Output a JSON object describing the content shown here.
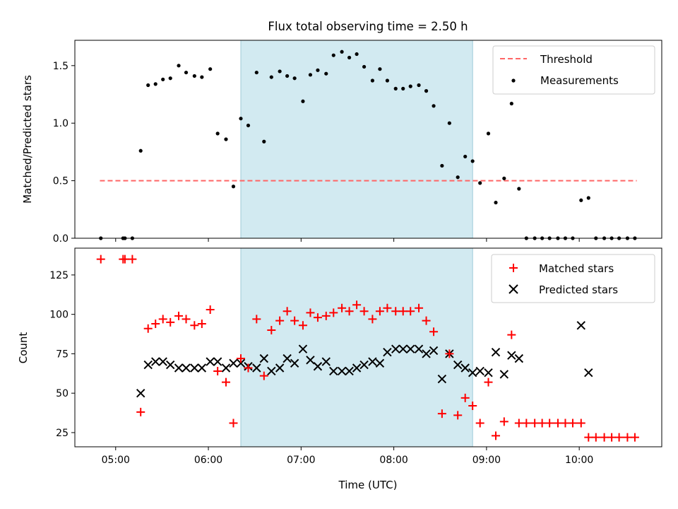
{
  "figure": {
    "title": "Flux total observing time = 2.50 h",
    "xlabel": "Time (UTC)",
    "x_ticks": [
      "05:00",
      "06:00",
      "07:00",
      "08:00",
      "09:00",
      "10:00"
    ],
    "x_tick_hours": [
      5,
      6,
      7,
      8,
      9,
      10
    ],
    "xlim_hours": [
      4.56,
      10.89
    ],
    "highlight_span_hours": [
      6.35,
      8.85
    ],
    "colors": {
      "highlight": "#add8e6",
      "threshold": "#ff6666",
      "matched": "#ff0000",
      "predicted": "#000000",
      "measurements": "#000000"
    }
  },
  "chart_data": [
    {
      "type": "scatter",
      "panel": "top",
      "xlabel": "",
      "ylabel": "Matched/Predicted stars",
      "ylim": [
        0,
        1.72
      ],
      "y_ticks": [
        0.0,
        0.5,
        1.0,
        1.5
      ],
      "y_tick_labels": [
        "0.0",
        "0.5",
        "1.0",
        "1.5"
      ],
      "legend": {
        "placement": "top-right",
        "entries": [
          "Threshold",
          "Measurements"
        ]
      },
      "threshold": {
        "name": "Threshold",
        "value": 0.5,
        "x_range": [
          4.83,
          10.62
        ]
      },
      "series": [
        {
          "name": "Measurements",
          "x": [
            4.84,
            5.08,
            5.1,
            5.18,
            5.27,
            5.35,
            5.43,
            5.51,
            5.59,
            5.68,
            5.76,
            5.85,
            5.93,
            6.02,
            6.1,
            6.19,
            6.27,
            6.35,
            6.43,
            6.52,
            6.6,
            6.68,
            6.77,
            6.85,
            6.93,
            7.02,
            7.1,
            7.18,
            7.27,
            7.35,
            7.44,
            7.52,
            7.6,
            7.68,
            7.77,
            7.85,
            7.93,
            8.02,
            8.1,
            8.18,
            8.27,
            8.35,
            8.43,
            8.52,
            8.6,
            8.69,
            8.77,
            8.85,
            8.93,
            9.02,
            9.1,
            9.19,
            9.27,
            9.35,
            9.43,
            9.52,
            9.6,
            9.68,
            9.77,
            9.85,
            9.93,
            10.02,
            10.1,
            10.18,
            10.27,
            10.35,
            10.43,
            10.52,
            10.6
          ],
          "y": [
            0.0,
            0.0,
            0.0,
            0.0,
            0.76,
            1.33,
            1.34,
            1.38,
            1.39,
            1.5,
            1.44,
            1.41,
            1.4,
            1.47,
            0.91,
            0.86,
            0.45,
            1.04,
            0.98,
            1.44,
            0.84,
            1.4,
            1.45,
            1.41,
            1.39,
            1.19,
            1.42,
            1.46,
            1.43,
            1.59,
            1.62,
            1.57,
            1.6,
            1.49,
            1.37,
            1.47,
            1.37,
            1.3,
            1.3,
            1.32,
            1.33,
            1.28,
            1.15,
            0.63,
            1.0,
            0.53,
            0.71,
            0.67,
            0.48,
            0.91,
            0.31,
            0.52,
            1.17,
            0.43,
            0.0,
            0.0,
            0.0,
            0.0,
            0.0,
            0.0,
            0.0,
            0.33,
            0.35,
            0.0,
            0.0,
            0.0,
            0.0,
            0.0,
            0.0
          ]
        }
      ]
    },
    {
      "type": "scatter",
      "panel": "bottom",
      "xlabel": "Time (UTC)",
      "ylabel": "Count",
      "ylim": [
        16,
        142
      ],
      "y_ticks": [
        25,
        50,
        75,
        100,
        125
      ],
      "y_tick_labels": [
        "25",
        "50",
        "75",
        "100",
        "125"
      ],
      "legend": {
        "placement": "top-right",
        "entries": [
          "Matched stars",
          "Predicted stars"
        ]
      },
      "series": [
        {
          "name": "Matched stars",
          "marker": "+",
          "x": [
            4.84,
            5.08,
            5.1,
            5.18,
            5.27,
            5.35,
            5.43,
            5.51,
            5.59,
            5.68,
            5.76,
            5.85,
            5.93,
            6.02,
            6.1,
            6.19,
            6.27,
            6.35,
            6.43,
            6.52,
            6.6,
            6.68,
            6.77,
            6.85,
            6.93,
            7.02,
            7.1,
            7.18,
            7.27,
            7.35,
            7.44,
            7.52,
            7.6,
            7.68,
            7.77,
            7.85,
            7.93,
            8.02,
            8.1,
            8.18,
            8.27,
            8.35,
            8.43,
            8.52,
            8.6,
            8.69,
            8.77,
            8.85,
            8.93,
            9.02,
            9.1,
            9.19,
            9.27,
            9.35,
            9.43,
            9.52,
            9.6,
            9.68,
            9.77,
            9.85,
            9.93,
            10.02,
            10.1,
            10.18,
            10.27,
            10.35,
            10.43,
            10.52,
            10.6
          ],
          "y": [
            135,
            135,
            135,
            135,
            38,
            91,
            94,
            97,
            95,
            99,
            97,
            93,
            94,
            103,
            64,
            57,
            31,
            72,
            66,
            97,
            61,
            90,
            96,
            102,
            96,
            93,
            101,
            98,
            99,
            101,
            104,
            102,
            106,
            102,
            97,
            102,
            104,
            102,
            102,
            102,
            104,
            96,
            89,
            37,
            75,
            36,
            47,
            42,
            31,
            57,
            23,
            32,
            87,
            31,
            31,
            31,
            31,
            31,
            31,
            31,
            31,
            31,
            22,
            22,
            22,
            22,
            22,
            22,
            22
          ]
        },
        {
          "name": "Predicted stars",
          "marker": "x",
          "x": [
            5.27,
            5.35,
            5.43,
            5.51,
            5.59,
            5.68,
            5.76,
            5.85,
            5.93,
            6.02,
            6.1,
            6.19,
            6.27,
            6.35,
            6.43,
            6.52,
            6.6,
            6.68,
            6.77,
            6.85,
            6.93,
            7.02,
            7.1,
            7.18,
            7.27,
            7.35,
            7.44,
            7.52,
            7.6,
            7.68,
            7.77,
            7.85,
            7.93,
            8.02,
            8.1,
            8.18,
            8.27,
            8.35,
            8.43,
            8.52,
            8.6,
            8.69,
            8.77,
            8.85,
            8.93,
            9.02,
            9.1,
            9.19,
            9.27,
            9.35,
            10.02,
            10.1
          ],
          "y": [
            50,
            68,
            70,
            70,
            68,
            66,
            66,
            66,
            66,
            70,
            70,
            66,
            69,
            69,
            67,
            66,
            72,
            64,
            66,
            72,
            69,
            78,
            71,
            67,
            70,
            64,
            64,
            64,
            66,
            68,
            70,
            69,
            76,
            78,
            78,
            78,
            78,
            75,
            77,
            59,
            75,
            68,
            66,
            63,
            64,
            63,
            76,
            62,
            74,
            72,
            93,
            63
          ]
        }
      ]
    }
  ]
}
